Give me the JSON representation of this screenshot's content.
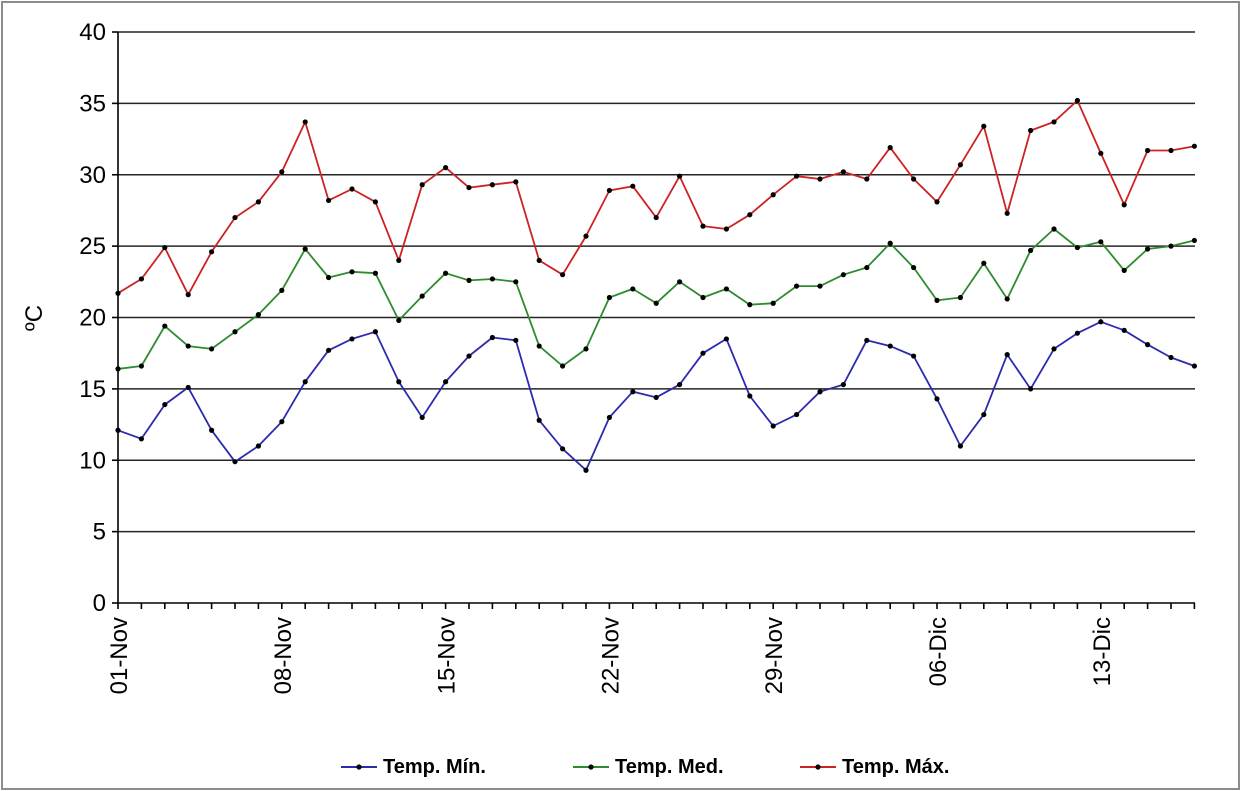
{
  "chart_data": {
    "type": "line",
    "ylabel": "ºC",
    "xlabel": "",
    "ylim": [
      0,
      40
    ],
    "yticks": [
      0,
      5,
      10,
      15,
      20,
      25,
      30,
      35,
      40
    ],
    "grid": true,
    "legend_position": "bottom",
    "xtick_labels": [
      "01-Nov",
      "08-Nov",
      "15-Nov",
      "22-Nov",
      "29-Nov",
      "06-Dic",
      "13-Dic"
    ],
    "x": [
      "01-Nov",
      "02-Nov",
      "03-Nov",
      "04-Nov",
      "05-Nov",
      "06-Nov",
      "07-Nov",
      "08-Nov",
      "09-Nov",
      "10-Nov",
      "11-Nov",
      "12-Nov",
      "13-Nov",
      "14-Nov",
      "15-Nov",
      "16-Nov",
      "17-Nov",
      "18-Nov",
      "19-Nov",
      "20-Nov",
      "21-Nov",
      "22-Nov",
      "23-Nov",
      "24-Nov",
      "25-Nov",
      "26-Nov",
      "27-Nov",
      "28-Nov",
      "29-Nov",
      "30-Nov",
      "01-Dic",
      "02-Dic",
      "03-Dic",
      "04-Dic",
      "05-Dic",
      "06-Dic",
      "07-Dic",
      "08-Dic",
      "09-Dic",
      "10-Dic",
      "11-Dic",
      "12-Dic",
      "13-Dic",
      "14-Dic",
      "15-Dic",
      "16-Dic",
      "17-Dic"
    ],
    "series": [
      {
        "name": "Temp. Mín.",
        "color": "#2b2bb0",
        "values": [
          12.1,
          11.5,
          13.9,
          15.1,
          12.1,
          9.9,
          11.0,
          12.7,
          15.5,
          17.7,
          18.5,
          19.0,
          15.5,
          13.0,
          15.5,
          17.3,
          18.6,
          18.4,
          12.8,
          10.8,
          9.3,
          13.0,
          14.8,
          14.4,
          15.3,
          17.5,
          18.5,
          14.5,
          12.4,
          13.2,
          14.8,
          15.3,
          18.4,
          18.0,
          17.3,
          14.3,
          11.0,
          13.2,
          17.4,
          15.0,
          17.8,
          18.9,
          19.7,
          19.1,
          18.1,
          17.2,
          16.6
        ]
      },
      {
        "name": "Temp. Med.",
        "color": "#2e8b2e",
        "values": [
          16.4,
          16.6,
          19.4,
          18.0,
          17.8,
          19.0,
          20.2,
          21.9,
          24.8,
          22.8,
          23.2,
          23.1,
          19.8,
          21.5,
          23.1,
          22.6,
          22.7,
          22.5,
          18.0,
          16.6,
          17.8,
          21.4,
          22.0,
          21.0,
          22.5,
          21.4,
          22.0,
          20.9,
          21.0,
          22.2,
          22.2,
          23.0,
          23.5,
          25.2,
          23.5,
          21.2,
          21.4,
          23.8,
          21.3,
          24.7,
          26.2,
          24.9,
          25.3,
          23.3,
          24.8,
          25.0,
          25.4
        ]
      },
      {
        "name": "Temp. Máx.",
        "color": "#cc2222",
        "values": [
          21.7,
          22.7,
          24.9,
          21.6,
          24.6,
          27.0,
          28.1,
          30.2,
          33.7,
          28.2,
          29.0,
          28.1,
          24.0,
          29.3,
          30.5,
          29.1,
          29.3,
          29.5,
          24.0,
          23.0,
          25.7,
          28.9,
          29.2,
          27.0,
          29.9,
          26.4,
          26.2,
          27.2,
          28.6,
          29.9,
          29.7,
          30.2,
          29.7,
          31.9,
          29.7,
          28.1,
          30.7,
          33.4,
          27.3,
          33.1,
          33.7,
          35.2,
          31.5,
          27.9,
          31.7,
          31.7,
          32.0
        ]
      }
    ]
  }
}
